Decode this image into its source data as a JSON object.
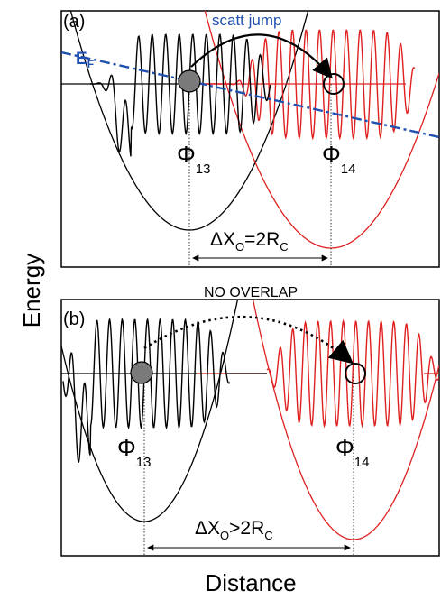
{
  "axes": {
    "y_label": "Energy",
    "x_label": "Distance"
  },
  "panel_a": {
    "tag": "(a)",
    "fermi_label": "E",
    "fermi_subscript": "F",
    "jump_label": "scatt jump",
    "phi_left": "Φ",
    "phi_left_sub": "13",
    "phi_right": "Φ",
    "phi_right_sub": "14",
    "delta_prefix": "ΔX",
    "delta_sub_o": "O",
    "delta_mid": "=2R",
    "delta_sub_c": "C"
  },
  "panel_b": {
    "tag": "(b)",
    "title": "NO OVERLAP",
    "phi_left": "Φ",
    "phi_left_sub": "13",
    "phi_right": "Φ",
    "phi_right_sub": "14",
    "delta_prefix": "ΔX",
    "delta_sub_o": "O",
    "delta_mid": ">2R",
    "delta_sub_c": "C"
  },
  "colors": {
    "black_curve": "#000000",
    "red_curve": "#e02020",
    "fermi_line": "#2050b0",
    "electron_fill": "#7a7a7a"
  }
}
